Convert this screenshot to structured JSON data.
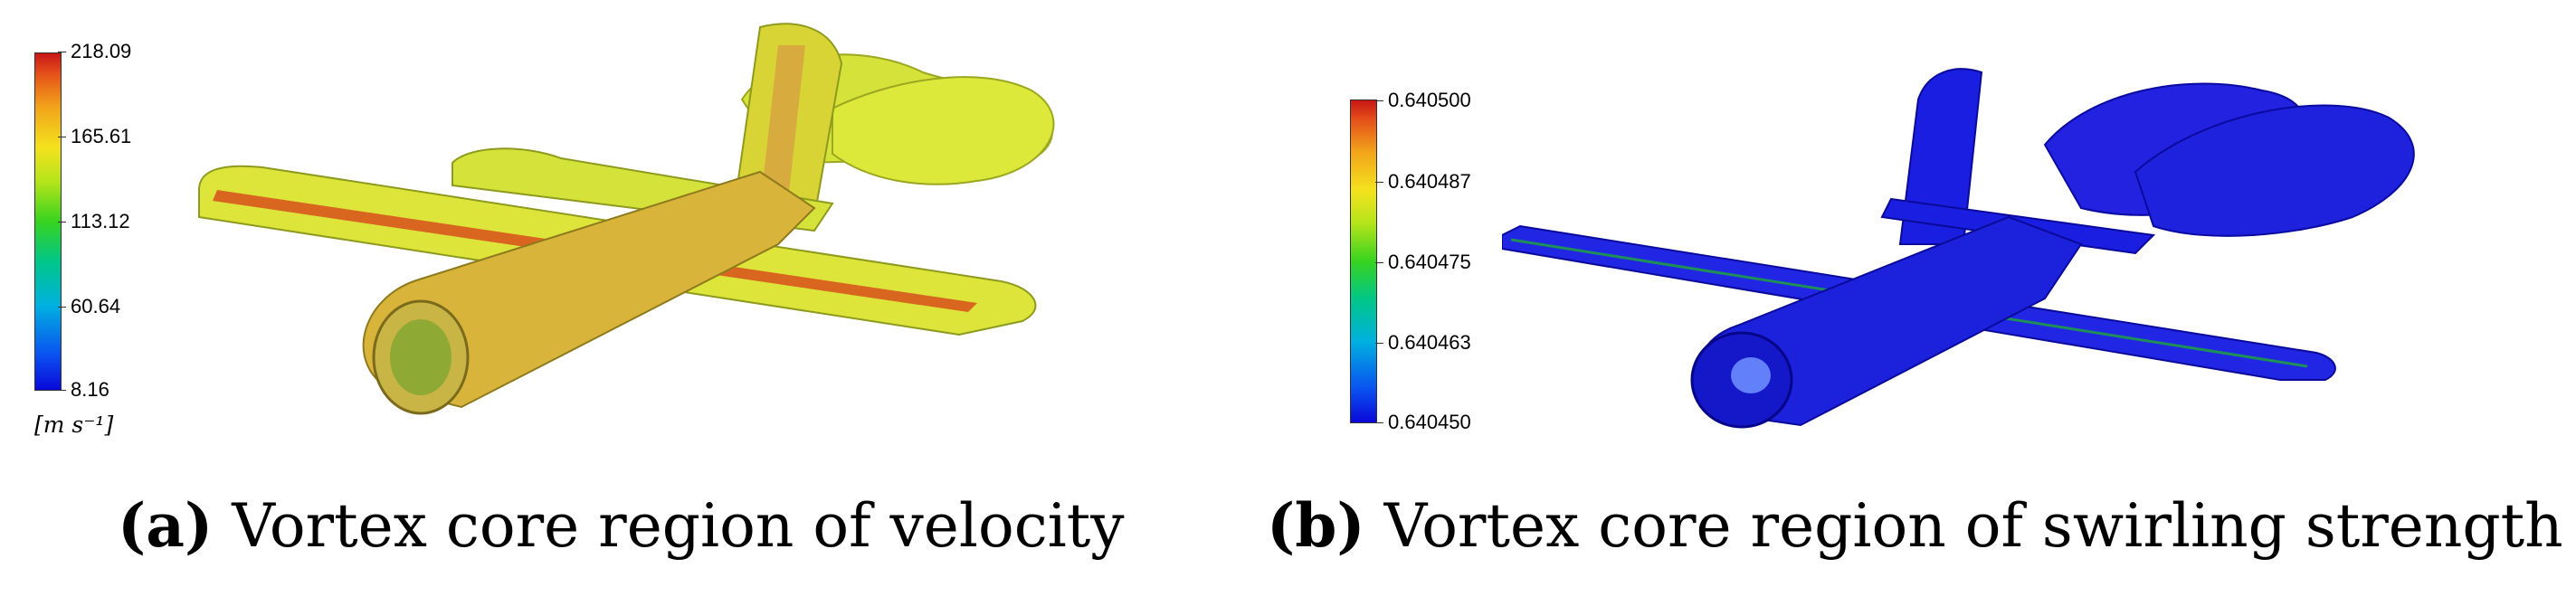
{
  "panel_a": {
    "colorbar": {
      "ticks": [
        "218.09",
        "165.61",
        "113.12",
        "60.64",
        "8.16"
      ],
      "unit": "[m s⁻¹]"
    },
    "caption": {
      "label": "(a)",
      "text": "Vortex core region of velocity"
    },
    "colors": {
      "surface": "#dce83a",
      "core": "#d7501a",
      "fuselage": "#d9b43a"
    }
  },
  "panel_b": {
    "colorbar": {
      "ticks": [
        "0.640500",
        "0.640487",
        "0.640475",
        "0.640463",
        "0.640450"
      ]
    },
    "caption": {
      "label": "(b)",
      "text": "Vortex core region of swirling strength"
    },
    "colors": {
      "surface": "#1a1ee0",
      "highlight": "#6a8cff"
    }
  }
}
